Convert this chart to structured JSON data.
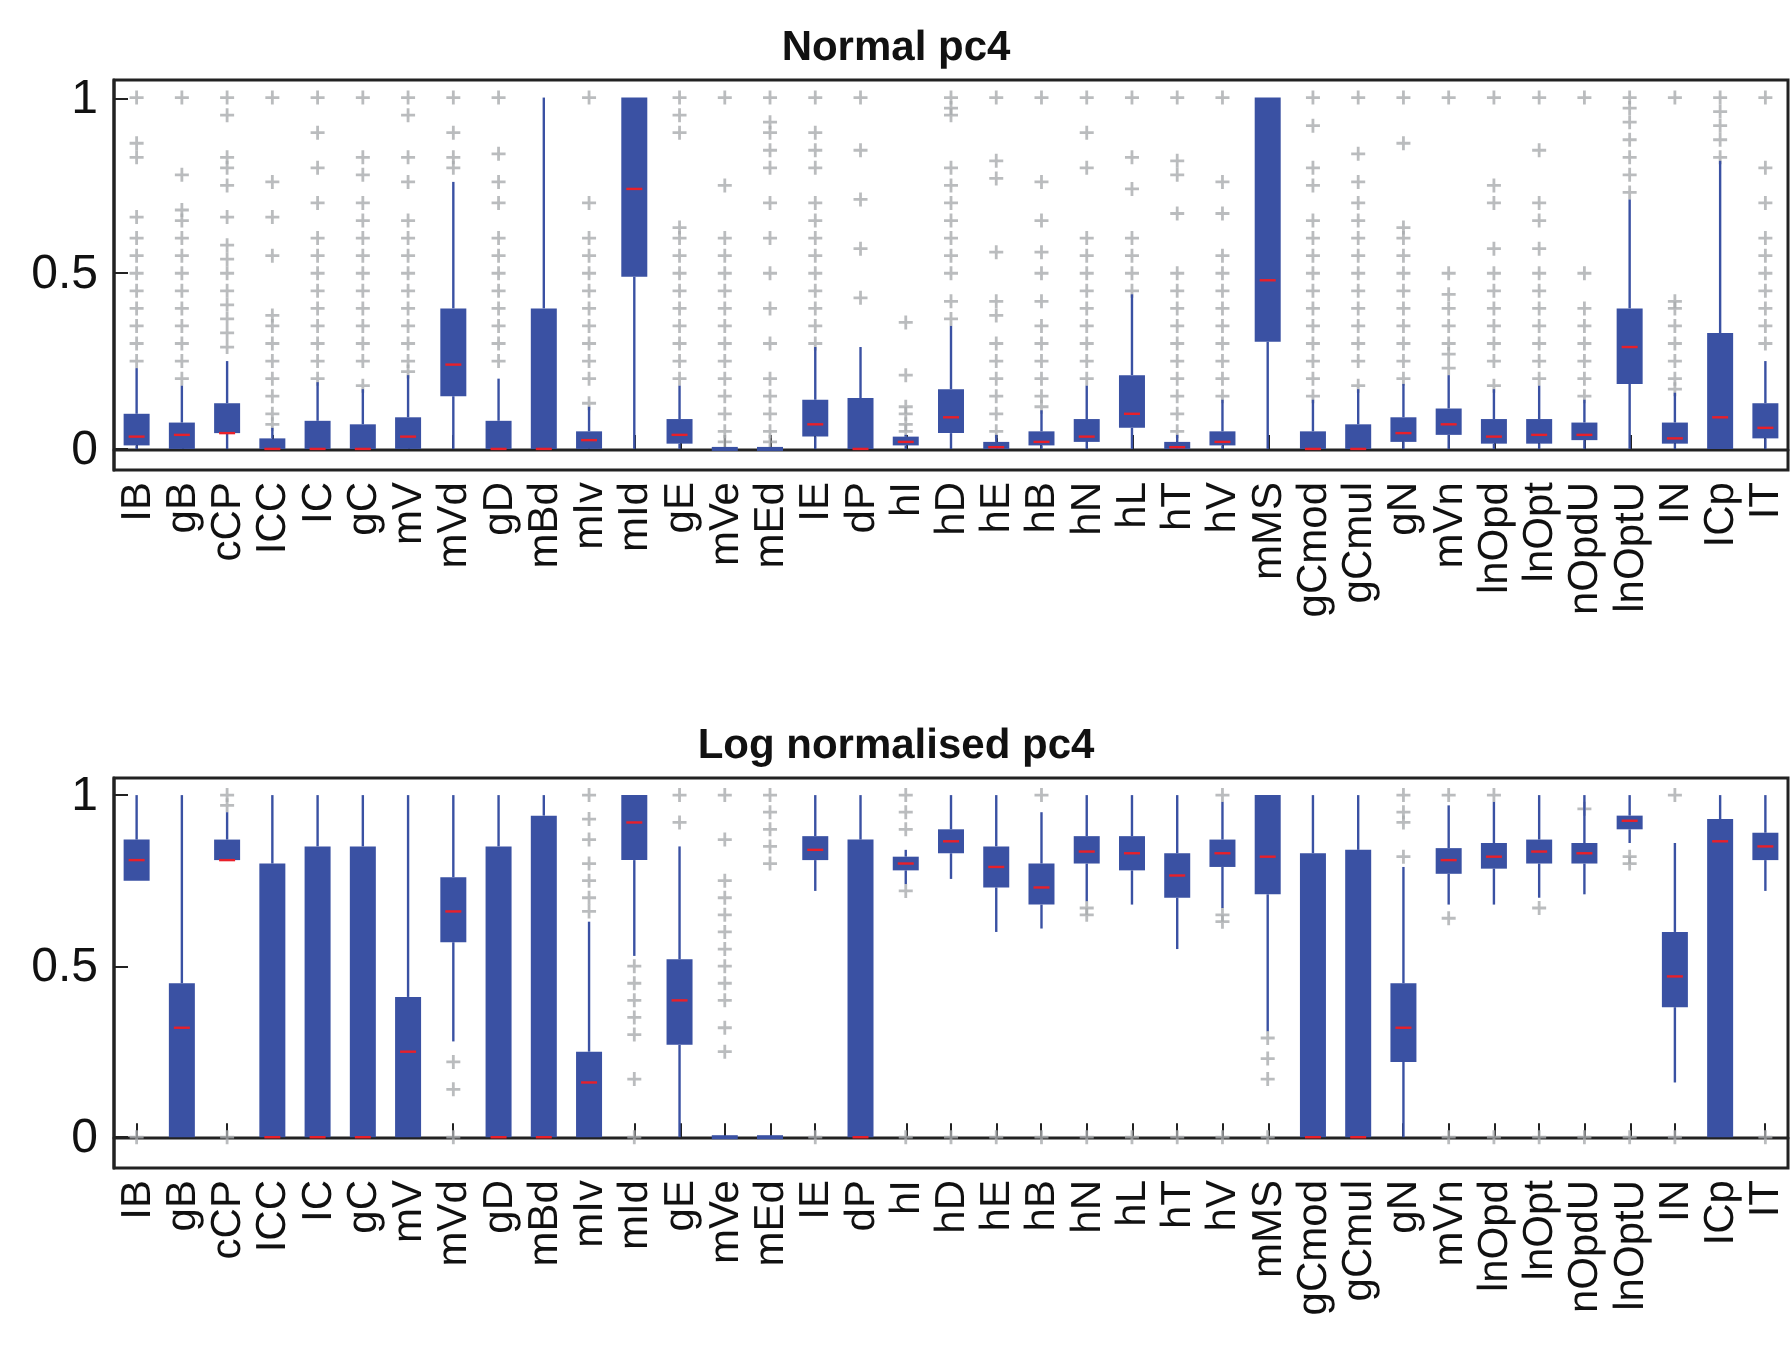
{
  "chart_data": [
    {
      "type": "box",
      "title": "Normal pc4",
      "categories": [
        "IB",
        "gB",
        "cCP",
        "ICC",
        "IC",
        "gC",
        "mV",
        "mVd",
        "gD",
        "mBd",
        "mIv",
        "mId",
        "gE",
        "mVe",
        "mEd",
        "IE",
        "dP",
        "hI",
        "hD",
        "hE",
        "hB",
        "hN",
        "hL",
        "hT",
        "hV",
        "mMS",
        "gCmod",
        "gCmul",
        "gN",
        "mVn",
        "lnOpd",
        "lnOpt",
        "nOpdU",
        "lnOptU",
        "IN",
        "ICp",
        "IT"
      ],
      "ylim": [
        -0.06,
        1.05
      ],
      "yticks": [
        0,
        0.5,
        1
      ],
      "series": [
        {
          "color": "#3a51a3",
          "boxes": [
            {
              "low": 0,
              "q1": 0.01,
              "median": 0.035,
              "q3": 0.1,
              "high": 0.23,
              "outliers": [
                0.25,
                0.3,
                0.35,
                0.4,
                0.45,
                0.5,
                0.55,
                0.6,
                0.66,
                0.83,
                0.87,
                1
              ]
            },
            {
              "low": 0,
              "q1": 0,
              "median": 0.04,
              "q3": 0.075,
              "high": 0.18,
              "outliers": [
                0.2,
                0.25,
                0.3,
                0.35,
                0.4,
                0.45,
                0.5,
                0.55,
                0.6,
                0.65,
                0.68,
                0.78,
                1
              ]
            },
            {
              "low": 0,
              "q1": 0.045,
              "median": 0.045,
              "q3": 0.13,
              "high": 0.25,
              "outliers": [
                0.29,
                0.33,
                0.37,
                0.41,
                0.45,
                0.5,
                0.54,
                0.58,
                0.66,
                0.75,
                0.8,
                0.83,
                0.95,
                1
              ]
            },
            {
              "low": 0,
              "q1": 0,
              "median": 0,
              "q3": 0.03,
              "high": 0.06,
              "outliers": [
                0.07,
                0.1,
                0.15,
                0.2,
                0.25,
                0.3,
                0.35,
                0.38,
                0.55,
                0.66,
                0.76,
                1
              ]
            },
            {
              "low": 0,
              "q1": 0,
              "median": 0,
              "q3": 0.08,
              "high": 0.19,
              "outliers": [
                0.2,
                0.25,
                0.3,
                0.35,
                0.4,
                0.45,
                0.5,
                0.55,
                0.6,
                0.7,
                0.8,
                0.9,
                1
              ]
            },
            {
              "low": 0,
              "q1": 0,
              "median": 0,
              "q3": 0.07,
              "high": 0.17,
              "outliers": [
                0.18,
                0.25,
                0.3,
                0.35,
                0.4,
                0.45,
                0.5,
                0.55,
                0.6,
                0.65,
                0.7,
                0.78,
                0.83,
                1
              ]
            },
            {
              "low": 0,
              "q1": 0,
              "median": 0.035,
              "q3": 0.09,
              "high": 0.21,
              "outliers": [
                0.22,
                0.25,
                0.3,
                0.35,
                0.4,
                0.45,
                0.5,
                0.55,
                0.6,
                0.65,
                0.76,
                0.83,
                0.95,
                1
              ]
            },
            {
              "low": 0,
              "q1": 0.15,
              "median": 0.24,
              "q3": 0.4,
              "high": 0.76,
              "outliers": [
                0.8,
                0.83,
                0.9,
                1
              ]
            },
            {
              "low": 0,
              "q1": 0,
              "median": 0,
              "q3": 0.08,
              "high": 0.2,
              "outliers": [
                0.25,
                0.3,
                0.35,
                0.4,
                0.45,
                0.5,
                0.55,
                0.6,
                0.7,
                0.76,
                0.84,
                1
              ]
            },
            {
              "low": 0,
              "q1": 0,
              "median": 0,
              "q3": 0.4,
              "high": 1
            },
            {
              "low": 0,
              "q1": 0,
              "median": 0.025,
              "q3": 0.05,
              "high": 0.12,
              "outliers": [
                0.13,
                0.2,
                0.25,
                0.3,
                0.35,
                0.4,
                0.45,
                0.5,
                0.55,
                0.6,
                0.7,
                1
              ]
            },
            {
              "low": 0,
              "q1": 0.49,
              "median": 0.74,
              "q3": 1,
              "high": 1
            },
            {
              "low": 0,
              "q1": 0.015,
              "median": 0.04,
              "q3": 0.085,
              "high": 0.18,
              "outliers": [
                0.2,
                0.25,
                0.3,
                0.35,
                0.4,
                0.45,
                0.5,
                0.55,
                0.6,
                0.63,
                0.9,
                0.95,
                1
              ]
            },
            {
              "low": 0,
              "q1": 0,
              "median": 0,
              "q3": 0,
              "high": 0,
              "outliers": [
                0.02,
                0.05,
                0.1,
                0.15,
                0.2,
                0.25,
                0.3,
                0.35,
                0.4,
                0.45,
                0.5,
                0.55,
                0.6,
                0.75,
                1
              ]
            },
            {
              "low": 0,
              "q1": 0,
              "median": 0,
              "q3": 0,
              "high": 0,
              "outliers": [
                0.02,
                0.05,
                0.1,
                0.15,
                0.2,
                0.3,
                0.4,
                0.5,
                0.6,
                0.7,
                0.8,
                0.85,
                0.9,
                0.93,
                1
              ]
            },
            {
              "low": 0,
              "q1": 0.035,
              "median": 0.07,
              "q3": 0.14,
              "high": 0.29,
              "outliers": [
                0.3,
                0.35,
                0.4,
                0.45,
                0.5,
                0.55,
                0.6,
                0.65,
                0.7,
                0.8,
                0.85,
                0.9,
                1
              ]
            },
            {
              "low": 0,
              "q1": 0,
              "median": 0,
              "q3": 0.145,
              "high": 0.29,
              "outliers": [
                0.43,
                0.57,
                0.71,
                0.85,
                1
              ]
            },
            {
              "low": 0,
              "q1": 0.01,
              "median": 0.02,
              "q3": 0.035,
              "high": 0.04,
              "outliers": [
                0.05,
                0.07,
                0.1,
                0.12,
                0.21,
                0.36
              ]
            },
            {
              "low": 0,
              "q1": 0.045,
              "median": 0.09,
              "q3": 0.17,
              "high": 0.35,
              "outliers": [
                0.37,
                0.42,
                0.5,
                0.55,
                0.6,
                0.65,
                0.7,
                0.75,
                0.8,
                0.95,
                0.97,
                1
              ]
            },
            {
              "low": 0,
              "q1": 0,
              "median": 0.005,
              "q3": 0.02,
              "high": 0.04,
              "outliers": [
                0.05,
                0.1,
                0.15,
                0.2,
                0.25,
                0.3,
                0.38,
                0.42,
                0.56,
                0.77,
                0.82,
                1
              ]
            },
            {
              "low": 0,
              "q1": 0.01,
              "median": 0.02,
              "q3": 0.05,
              "high": 0.11,
              "outliers": [
                0.12,
                0.15,
                0.2,
                0.25,
                0.3,
                0.35,
                0.42,
                0.5,
                0.56,
                0.65,
                0.76,
                1
              ]
            },
            {
              "low": 0,
              "q1": 0.02,
              "median": 0.035,
              "q3": 0.085,
              "high": 0.18,
              "outliers": [
                0.2,
                0.25,
                0.3,
                0.35,
                0.4,
                0.45,
                0.5,
                0.55,
                0.6,
                0.8,
                0.9,
                1
              ]
            },
            {
              "low": 0,
              "q1": 0.06,
              "median": 0.1,
              "q3": 0.21,
              "high": 0.44,
              "outliers": [
                0.45,
                0.5,
                0.55,
                0.6,
                0.74,
                0.83,
                1
              ]
            },
            {
              "low": 0,
              "q1": 0,
              "median": 0.005,
              "q3": 0.02,
              "high": 0.04,
              "outliers": [
                0.05,
                0.1,
                0.15,
                0.2,
                0.25,
                0.3,
                0.35,
                0.4,
                0.45,
                0.5,
                0.67,
                0.78,
                0.82,
                1
              ]
            },
            {
              "low": 0,
              "q1": 0.01,
              "median": 0.02,
              "q3": 0.05,
              "high": 0.14,
              "outliers": [
                0.15,
                0.2,
                0.25,
                0.3,
                0.35,
                0.4,
                0.45,
                0.5,
                0.55,
                0.67,
                0.76,
                1
              ]
            },
            {
              "low": 0,
              "q1": 0.305,
              "median": 0.48,
              "q3": 1,
              "high": 1
            },
            {
              "low": 0,
              "q1": 0,
              "median": 0,
              "q3": 0.05,
              "high": 0.14,
              "outliers": [
                0.15,
                0.2,
                0.25,
                0.3,
                0.35,
                0.4,
                0.45,
                0.5,
                0.55,
                0.6,
                0.65,
                0.75,
                0.8,
                0.92,
                1
              ]
            },
            {
              "low": 0,
              "q1": 0,
              "median": 0,
              "q3": 0.07,
              "high": 0.17,
              "outliers": [
                0.18,
                0.25,
                0.3,
                0.35,
                0.4,
                0.45,
                0.5,
                0.55,
                0.6,
                0.65,
                0.7,
                0.76,
                0.84,
                1
              ]
            },
            {
              "low": 0,
              "q1": 0.02,
              "median": 0.045,
              "q3": 0.09,
              "high": 0.185,
              "outliers": [
                0.2,
                0.25,
                0.3,
                0.35,
                0.4,
                0.45,
                0.5,
                0.55,
                0.6,
                0.63,
                0.87,
                1
              ]
            },
            {
              "low": 0,
              "q1": 0.04,
              "median": 0.07,
              "q3": 0.115,
              "high": 0.21,
              "outliers": [
                0.23,
                0.27,
                0.3,
                0.35,
                0.4,
                0.44,
                0.5,
                1
              ]
            },
            {
              "low": 0,
              "q1": 0.015,
              "median": 0.035,
              "q3": 0.085,
              "high": 0.17,
              "outliers": [
                0.18,
                0.25,
                0.3,
                0.35,
                0.4,
                0.45,
                0.5,
                0.57,
                0.7,
                0.75,
                1
              ]
            },
            {
              "low": 0,
              "q1": 0.015,
              "median": 0.04,
              "q3": 0.085,
              "high": 0.18,
              "outliers": [
                0.2,
                0.25,
                0.3,
                0.35,
                0.4,
                0.45,
                0.5,
                0.57,
                0.65,
                0.7,
                0.85,
                1
              ]
            },
            {
              "low": 0,
              "q1": 0.025,
              "median": 0.04,
              "q3": 0.075,
              "high": 0.14,
              "outliers": [
                0.15,
                0.2,
                0.25,
                0.3,
                0.35,
                0.4,
                0.5,
                1
              ]
            },
            {
              "low": 0,
              "q1": 0.185,
              "median": 0.29,
              "q3": 0.4,
              "high": 0.71,
              "outliers": [
                0.73,
                0.78,
                0.83,
                0.88,
                0.93,
                0.97,
                1
              ]
            },
            {
              "low": 0,
              "q1": 0.015,
              "median": 0.03,
              "q3": 0.075,
              "high": 0.16,
              "outliers": [
                0.17,
                0.2,
                0.25,
                0.3,
                0.35,
                0.4,
                0.42,
                1
              ]
            },
            {
              "low": 0,
              "q1": 0,
              "median": 0.09,
              "q3": 0.33,
              "high": 0.82,
              "outliers": [
                0.83,
                0.88,
                0.92,
                0.96,
                1
              ]
            },
            {
              "low": 0,
              "q1": 0.03,
              "median": 0.06,
              "q3": 0.13,
              "high": 0.25,
              "outliers": [
                0.3,
                0.35,
                0.4,
                0.45,
                0.5,
                0.55,
                0.6,
                0.7,
                0.8,
                1
              ]
            }
          ]
        }
      ]
    },
    {
      "type": "box",
      "title": "Log normalised pc4",
      "categories": [
        "IB",
        "gB",
        "cCP",
        "ICC",
        "IC",
        "gC",
        "mV",
        "mVd",
        "gD",
        "mBd",
        "mIv",
        "mId",
        "gE",
        "mVe",
        "mEd",
        "IE",
        "dP",
        "hI",
        "hD",
        "hE",
        "hB",
        "hN",
        "hL",
        "hT",
        "hV",
        "mMS",
        "gCmod",
        "gCmul",
        "gN",
        "mVn",
        "lnOpd",
        "lnOpt",
        "nOpdU",
        "lnOptU",
        "IN",
        "ICp",
        "IT"
      ],
      "ylim": [
        -0.09,
        1.05
      ],
      "yticks": [
        0,
        0.5,
        1
      ],
      "series": [
        {
          "color": "#3a51a3",
          "boxes": [
            {
              "low": 0.75,
              "q1": 0.75,
              "median": 0.81,
              "q3": 0.87,
              "high": 1,
              "outliers": [
                0
              ]
            },
            {
              "low": 0,
              "q1": 0,
              "median": 0.32,
              "q3": 0.45,
              "high": 1
            },
            {
              "low": 0.81,
              "q1": 0.81,
              "median": 0.81,
              "q3": 0.87,
              "high": 0.95,
              "outliers": [
                0.97,
                1,
                0
              ]
            },
            {
              "low": 0,
              "q1": 0,
              "median": 0,
              "q3": 0.8,
              "high": 1
            },
            {
              "low": 0,
              "q1": 0,
              "median": 0,
              "q3": 0.85,
              "high": 1
            },
            {
              "low": 0,
              "q1": 0,
              "median": 0,
              "q3": 0.85,
              "high": 1
            },
            {
              "low": 0,
              "q1": 0,
              "median": 0.25,
              "q3": 0.41,
              "high": 1
            },
            {
              "low": 0.28,
              "q1": 0.57,
              "median": 0.66,
              "q3": 0.76,
              "high": 1,
              "outliers": [
                0.22,
                0.14,
                0
              ]
            },
            {
              "low": 0,
              "q1": 0,
              "median": 0,
              "q3": 0.85,
              "high": 1
            },
            {
              "low": 0,
              "q1": 0,
              "median": 0,
              "q3": 0.94,
              "high": 1
            },
            {
              "low": 0,
              "q1": 0,
              "median": 0.16,
              "q3": 0.25,
              "high": 0.63,
              "outliers": [
                0.66,
                0.7,
                0.75,
                0.8,
                0.87,
                0.93,
                1
              ]
            },
            {
              "low": 0.53,
              "q1": 0.81,
              "median": 0.92,
              "q3": 1,
              "high": 1,
              "outliers": [
                0.5,
                0.45,
                0.4,
                0.35,
                0.3,
                0.17,
                0
              ]
            },
            {
              "low": 0,
              "q1": 0.27,
              "median": 0.4,
              "q3": 0.52,
              "high": 0.85,
              "outliers": [
                0.92,
                1
              ]
            },
            {
              "low": 0,
              "q1": 0,
              "median": 0,
              "q3": 0,
              "high": 0,
              "outliers": [
                0.25,
                0.32,
                0.4,
                0.45,
                0.5,
                0.55,
                0.6,
                0.65,
                0.7,
                0.75,
                0.87,
                1
              ]
            },
            {
              "low": 0,
              "q1": 0,
              "median": 0,
              "q3": 0,
              "high": 0,
              "outliers": [
                0.8,
                0.85,
                0.9,
                0.95,
                1
              ]
            },
            {
              "low": 0.72,
              "q1": 0.81,
              "median": 0.84,
              "q3": 0.88,
              "high": 1,
              "outliers": [
                0
              ]
            },
            {
              "low": 0,
              "q1": 0,
              "median": 0,
              "q3": 0.87,
              "high": 1
            },
            {
              "low": 0.74,
              "q1": 0.78,
              "median": 0.8,
              "q3": 0.82,
              "high": 0.84,
              "outliers": [
                0.72,
                0.9,
                0.95,
                1,
                0
              ]
            },
            {
              "low": 0.755,
              "q1": 0.83,
              "median": 0.865,
              "q3": 0.9,
              "high": 1,
              "outliers": [
                0
              ]
            },
            {
              "low": 0.6,
              "q1": 0.73,
              "median": 0.79,
              "q3": 0.85,
              "high": 1,
              "outliers": [
                0
              ]
            },
            {
              "low": 0.61,
              "q1": 0.68,
              "median": 0.73,
              "q3": 0.8,
              "high": 0.95,
              "outliers": [
                1,
                0
              ]
            },
            {
              "low": 0.69,
              "q1": 0.8,
              "median": 0.835,
              "q3": 0.88,
              "high": 1,
              "outliers": [
                0.65,
                0.67,
                0
              ]
            },
            {
              "low": 0.68,
              "q1": 0.78,
              "median": 0.83,
              "q3": 0.88,
              "high": 1,
              "outliers": [
                0
              ]
            },
            {
              "low": 0.55,
              "q1": 0.7,
              "median": 0.765,
              "q3": 0.83,
              "high": 1,
              "outliers": [
                0
              ]
            },
            {
              "low": 0.67,
              "q1": 0.79,
              "median": 0.83,
              "q3": 0.87,
              "high": 0.98,
              "outliers": [
                1,
                0.65,
                0.63,
                0
              ]
            },
            {
              "low": 0.31,
              "q1": 0.71,
              "median": 0.82,
              "q3": 1,
              "high": 1,
              "outliers": [
                0.29,
                0.23,
                0.17,
                0
              ]
            },
            {
              "low": 0,
              "q1": 0,
              "median": 0,
              "q3": 0.83,
              "high": 1
            },
            {
              "low": 0,
              "q1": 0,
              "median": 0,
              "q3": 0.84,
              "high": 1
            },
            {
              "low": 0,
              "q1": 0.22,
              "median": 0.32,
              "q3": 0.45,
              "high": 0.79,
              "outliers": [
                0.82,
                0.92,
                0.95,
                1
              ]
            },
            {
              "low": 0.68,
              "q1": 0.77,
              "median": 0.81,
              "q3": 0.845,
              "high": 0.97,
              "outliers": [
                0.64,
                1,
                0
              ]
            },
            {
              "low": 0.68,
              "q1": 0.785,
              "median": 0.82,
              "q3": 0.86,
              "high": 0.98,
              "outliers": [
                1,
                0
              ]
            },
            {
              "low": 0.7,
              "q1": 0.8,
              "median": 0.835,
              "q3": 0.87,
              "high": 1,
              "outliers": [
                0.67,
                0
              ]
            },
            {
              "low": 0.71,
              "q1": 0.8,
              "median": 0.83,
              "q3": 0.86,
              "high": 1,
              "outliers": [
                0.96,
                0
              ]
            },
            {
              "low": 0.86,
              "q1": 0.9,
              "median": 0.925,
              "q3": 0.94,
              "high": 1,
              "outliers": [
                0.82,
                0.8,
                0
              ]
            },
            {
              "low": 0.16,
              "q1": 0.38,
              "median": 0.47,
              "q3": 0.6,
              "high": 0.86,
              "outliers": [
                1,
                0
              ]
            },
            {
              "low": 0,
              "q1": 0,
              "median": 0.865,
              "q3": 0.93,
              "high": 1
            },
            {
              "low": 0.72,
              "q1": 0.81,
              "median": 0.85,
              "q3": 0.89,
              "high": 1,
              "outliers": [
                0
              ]
            }
          ]
        }
      ]
    }
  ]
}
